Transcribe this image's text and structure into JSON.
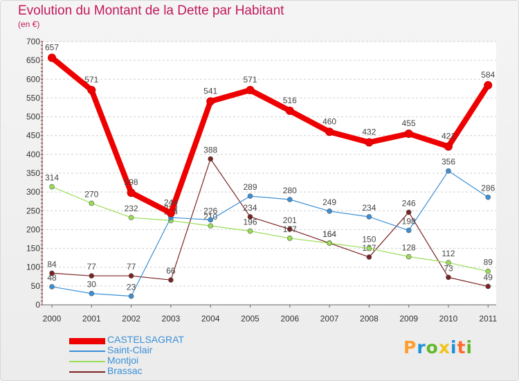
{
  "header": {
    "title": "Evolution du Montant de la Dette par Habitant",
    "subtitle": "(en €)"
  },
  "brand": {
    "text": "Proxiti",
    "letters": [
      "P",
      "r",
      "o",
      "x",
      "i",
      "t",
      "i"
    ],
    "colors": [
      "#ff9d2e",
      "#1e90d6",
      "#5fb82a",
      "#f0c419",
      "#1e90d6",
      "#ff6a2a",
      "#5fb82a"
    ]
  },
  "chart_data": {
    "type": "line",
    "title": "Evolution du Montant de la Dette par Habitant",
    "subtitle": "(en €)",
    "xlabel": "",
    "ylabel": "",
    "categories": [
      "2000",
      "2001",
      "2002",
      "2003",
      "2004",
      "2005",
      "2006",
      "2007",
      "2008",
      "2009",
      "2010",
      "2011"
    ],
    "ylim": [
      0,
      700
    ],
    "yticks": [
      0,
      50,
      100,
      150,
      200,
      250,
      300,
      350,
      400,
      450,
      500,
      550,
      600,
      650,
      700
    ],
    "grid": "horizontal dashed",
    "legend_position": "bottom-left",
    "series": [
      {
        "name": "Brassac",
        "color": "#7b2222",
        "values": [
          84,
          77,
          77,
          66,
          388,
          234,
          201,
          164,
          127,
          246,
          73,
          49
        ],
        "labels": [
          "84",
          "77",
          "77",
          "66",
          "388",
          "234",
          "201",
          "164",
          "127",
          "246",
          "73",
          "49"
        ]
      },
      {
        "name": "Montjoi",
        "color": "#99dd55",
        "values": [
          314,
          270,
          232,
          224,
          210,
          196,
          177,
          164,
          150,
          128,
          112,
          89
        ],
        "labels": [
          "314",
          "270",
          "232",
          "224",
          "210",
          "196",
          "177",
          "164",
          "150",
          "128",
          "112",
          "89"
        ]
      },
      {
        "name": "Saint-Clair",
        "color": "#3a8fd6",
        "values": [
          48,
          30,
          23,
          232,
          226,
          289,
          280,
          249,
          234,
          198,
          356,
          286
        ],
        "labels": [
          "48",
          "30",
          "23",
          "232",
          "226",
          "289",
          "280",
          "249",
          "234",
          "198",
          "356",
          "286"
        ]
      },
      {
        "name": "CASTELSAGRAT",
        "color": "#ee0000",
        "values": [
          657,
          571,
          298,
          244,
          541,
          571,
          516,
          460,
          432,
          455,
          421,
          584
        ],
        "labels": [
          "657",
          "571",
          "298",
          "244",
          "541",
          "571",
          "516",
          "460",
          "432",
          "455",
          "421",
          "584"
        ]
      }
    ]
  }
}
